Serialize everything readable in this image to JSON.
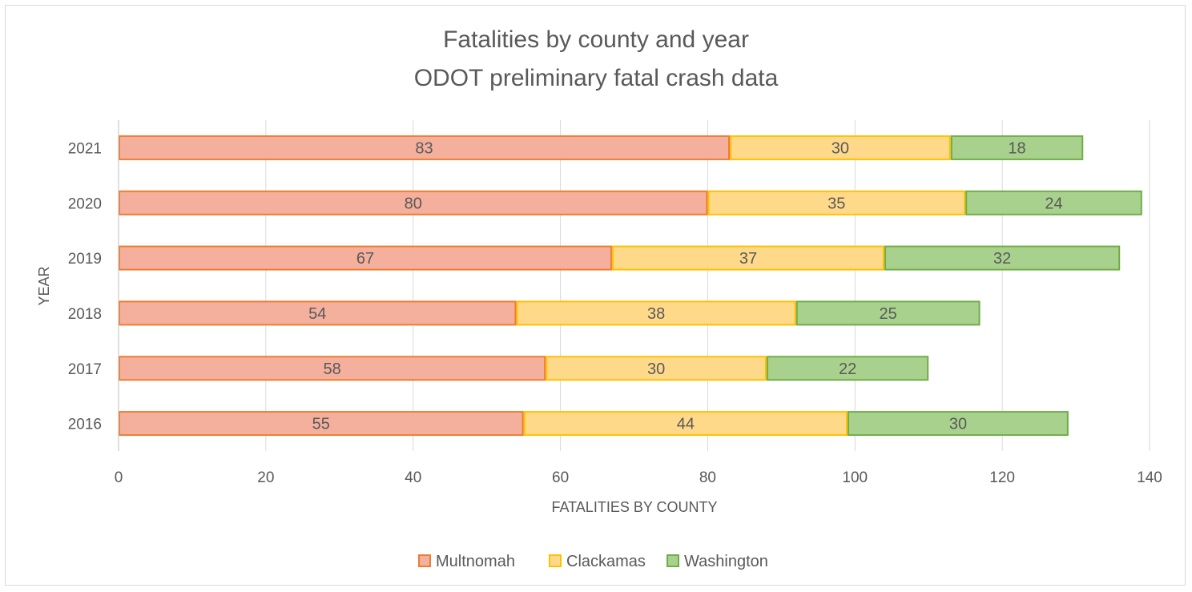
{
  "chart_data": {
    "type": "bar",
    "orientation": "horizontal",
    "stacked": true,
    "title": [
      "Fatalities by county and year",
      "ODOT preliminary fatal crash data"
    ],
    "xlabel": "FATALITIES BY COUNTY",
    "ylabel": "YEAR",
    "categories": [
      "2016",
      "2017",
      "2018",
      "2019",
      "2020",
      "2021"
    ],
    "series": [
      {
        "name": "Multnomah",
        "values": [
          55,
          58,
          54,
          67,
          80,
          83
        ],
        "fill": "#f4b09c",
        "stroke": "#ed7d31"
      },
      {
        "name": "Clackamas",
        "values": [
          44,
          30,
          38,
          37,
          35,
          30
        ],
        "fill": "#ffd98a",
        "stroke": "#ffc000"
      },
      {
        "name": "Washington",
        "values": [
          30,
          22,
          25,
          32,
          24,
          18
        ],
        "fill": "#a9d18e",
        "stroke": "#70ad47"
      }
    ],
    "xlim": [
      0,
      140
    ],
    "xticks": [
      "0",
      "20",
      "40",
      "60",
      "80",
      "100",
      "120",
      "140"
    ],
    "grid": true,
    "legend_position": "bottom",
    "data_labels": true
  }
}
